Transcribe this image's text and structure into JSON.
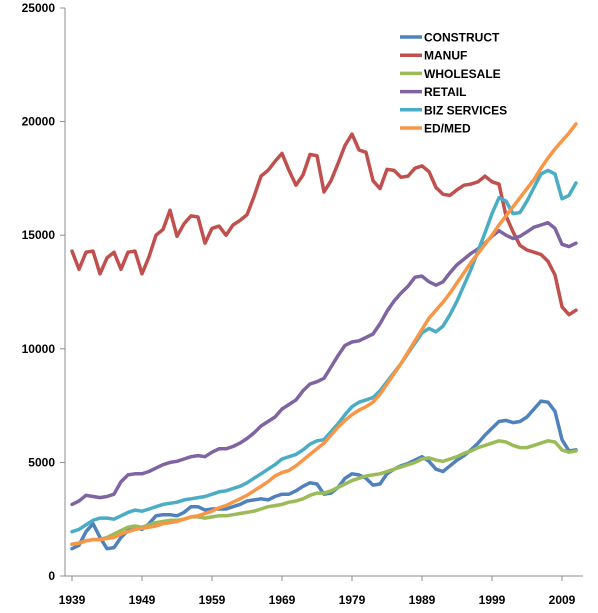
{
  "chart_data": {
    "type": "line",
    "title": "",
    "xlabel": "",
    "ylabel": "",
    "xlim": [
      1938,
      2012
    ],
    "ylim": [
      0,
      25000
    ],
    "x_ticks": [
      1939,
      1949,
      1959,
      1969,
      1979,
      1989,
      1999,
      2009
    ],
    "y_ticks": [
      0,
      5000,
      10000,
      15000,
      20000,
      25000
    ],
    "grid": false,
    "legend": "top-right",
    "series": [
      {
        "name": "CONSTRUCT",
        "color": "#4f81bd",
        "x": [
          1939,
          1940,
          1941,
          1942,
          1943,
          1944,
          1945,
          1946,
          1947,
          1948,
          1949,
          1950,
          1951,
          1952,
          1953,
          1954,
          1955,
          1956,
          1957,
          1958,
          1959,
          1960,
          1961,
          1962,
          1963,
          1964,
          1965,
          1966,
          1967,
          1968,
          1969,
          1970,
          1971,
          1972,
          1973,
          1974,
          1975,
          1976,
          1977,
          1978,
          1979,
          1980,
          1981,
          1982,
          1983,
          1984,
          1985,
          1986,
          1987,
          1988,
          1989,
          1990,
          1991,
          1992,
          1993,
          1994,
          1995,
          1996,
          1997,
          1998,
          1999,
          2000,
          2001,
          2002,
          2003,
          2004,
          2005,
          2006,
          2007,
          2008,
          2009,
          2010,
          2011
        ],
        "values": [
          1200,
          1350,
          1950,
          2300,
          1700,
          1200,
          1250,
          1700,
          2000,
          2150,
          2050,
          2300,
          2650,
          2700,
          2700,
          2650,
          2800,
          3050,
          3050,
          2900,
          2950,
          2950,
          2950,
          3050,
          3150,
          3300,
          3350,
          3400,
          3350,
          3500,
          3600,
          3600,
          3750,
          3950,
          4100,
          4050,
          3600,
          3650,
          3900,
          4300,
          4500,
          4450,
          4300,
          4000,
          4050,
          4500,
          4700,
          4850,
          4950,
          5100,
          5250,
          5050,
          4700,
          4600,
          4850,
          5100,
          5300,
          5550,
          5850,
          6200,
          6500,
          6800,
          6850,
          6750,
          6800,
          7000,
          7350,
          7700,
          7650,
          7250,
          6000,
          5500,
          5550
        ]
      },
      {
        "name": "MANUF",
        "color": "#c0504d",
        "x": [
          1939,
          1940,
          1941,
          1942,
          1943,
          1944,
          1945,
          1946,
          1947,
          1948,
          1949,
          1950,
          1951,
          1952,
          1953,
          1954,
          1955,
          1956,
          1957,
          1958,
          1959,
          1960,
          1961,
          1962,
          1963,
          1964,
          1965,
          1966,
          1967,
          1968,
          1969,
          1970,
          1971,
          1972,
          1973,
          1974,
          1975,
          1976,
          1977,
          1978,
          1979,
          1980,
          1981,
          1982,
          1983,
          1984,
          1985,
          1986,
          1987,
          1988,
          1989,
          1990,
          1991,
          1992,
          1993,
          1994,
          1995,
          1996,
          1997,
          1998,
          1999,
          2000,
          2001,
          2002,
          2003,
          2004,
          2005,
          2006,
          2007,
          2008,
          2009,
          2010,
          2011
        ],
        "values": [
          14300,
          13500,
          14250,
          14300,
          13300,
          14000,
          14250,
          13500,
          14250,
          14300,
          13300,
          14050,
          15000,
          15250,
          16100,
          14950,
          15500,
          15850,
          15800,
          14650,
          15300,
          15400,
          15000,
          15450,
          15650,
          15900,
          16700,
          17600,
          17850,
          18250,
          18600,
          17850,
          17200,
          17650,
          18550,
          18500,
          16900,
          17400,
          18150,
          18950,
          19450,
          18750,
          18650,
          17400,
          17050,
          17900,
          17850,
          17550,
          17600,
          17950,
          18050,
          17800,
          17100,
          16800,
          16750,
          17000,
          17200,
          17250,
          17350,
          17600,
          17350,
          17250,
          15850,
          15150,
          14550,
          14350,
          14250,
          14150,
          13850,
          13250,
          11850,
          11500,
          11700
        ]
      },
      {
        "name": "WHOLESALE",
        "color": "#9bbb59",
        "x": [
          1939,
          1940,
          1941,
          1942,
          1943,
          1944,
          1945,
          1946,
          1947,
          1948,
          1949,
          1950,
          1951,
          1952,
          1953,
          1954,
          1955,
          1956,
          1957,
          1958,
          1959,
          1960,
          1961,
          1962,
          1963,
          1964,
          1965,
          1966,
          1967,
          1968,
          1969,
          1970,
          1971,
          1972,
          1973,
          1974,
          1975,
          1976,
          1977,
          1978,
          1979,
          1980,
          1981,
          1982,
          1983,
          1984,
          1985,
          1986,
          1987,
          1988,
          1989,
          1990,
          1991,
          1992,
          1993,
          1994,
          1995,
          1996,
          1997,
          1998,
          1999,
          2000,
          2001,
          2002,
          2003,
          2004,
          2005,
          2006,
          2007,
          2008,
          2009,
          2010,
          2011
        ],
        "values": [
          1400,
          1450,
          1550,
          1600,
          1600,
          1700,
          1850,
          2000,
          2150,
          2200,
          2150,
          2250,
          2350,
          2400,
          2450,
          2450,
          2500,
          2600,
          2600,
          2550,
          2600,
          2650,
          2650,
          2700,
          2750,
          2800,
          2850,
          2950,
          3050,
          3100,
          3150,
          3250,
          3300,
          3400,
          3550,
          3650,
          3650,
          3750,
          3900,
          4050,
          4200,
          4300,
          4400,
          4450,
          4500,
          4600,
          4700,
          4800,
          4900,
          5000,
          5150,
          5200,
          5100,
          5050,
          5150,
          5250,
          5400,
          5500,
          5650,
          5750,
          5850,
          5950,
          5900,
          5750,
          5650,
          5650,
          5750,
          5850,
          5950,
          5900,
          5550,
          5450,
          5500
        ]
      },
      {
        "name": "RETAIL",
        "color": "#8064a2",
        "x": [
          1939,
          1940,
          1941,
          1942,
          1943,
          1944,
          1945,
          1946,
          1947,
          1948,
          1949,
          1950,
          1951,
          1952,
          1953,
          1954,
          1955,
          1956,
          1957,
          1958,
          1959,
          1960,
          1961,
          1962,
          1963,
          1964,
          1965,
          1966,
          1967,
          1968,
          1969,
          1970,
          1971,
          1972,
          1973,
          1974,
          1975,
          1976,
          1977,
          1978,
          1979,
          1980,
          1981,
          1982,
          1983,
          1984,
          1985,
          1986,
          1987,
          1988,
          1989,
          1990,
          1991,
          1992,
          1993,
          1994,
          1995,
          1996,
          1997,
          1998,
          1999,
          2000,
          2001,
          2002,
          2003,
          2004,
          2005,
          2006,
          2007,
          2008,
          2009,
          2010,
          2011
        ],
        "values": [
          3150,
          3300,
          3550,
          3500,
          3450,
          3500,
          3600,
          4150,
          4450,
          4500,
          4500,
          4600,
          4750,
          4900,
          5000,
          5050,
          5150,
          5250,
          5300,
          5250,
          5450,
          5600,
          5600,
          5700,
          5850,
          6050,
          6300,
          6600,
          6800,
          7000,
          7350,
          7550,
          7750,
          8150,
          8450,
          8550,
          8700,
          9200,
          9700,
          10150,
          10300,
          10350,
          10500,
          10650,
          11100,
          11650,
          12100,
          12450,
          12750,
          13150,
          13200,
          12950,
          12800,
          12950,
          13350,
          13700,
          13950,
          14200,
          14400,
          14650,
          14950,
          15200,
          15000,
          14850,
          14950,
          15150,
          15350,
          15450,
          15550,
          15300,
          14600,
          14500,
          14650
        ]
      },
      {
        "name": "BIZ SERVICES",
        "color": "#4bacc6",
        "x": [
          1939,
          1940,
          1941,
          1942,
          1943,
          1944,
          1945,
          1946,
          1947,
          1948,
          1949,
          1950,
          1951,
          1952,
          1953,
          1954,
          1955,
          1956,
          1957,
          1958,
          1959,
          1960,
          1961,
          1962,
          1963,
          1964,
          1965,
          1966,
          1967,
          1968,
          1969,
          1970,
          1971,
          1972,
          1973,
          1974,
          1975,
          1976,
          1977,
          1978,
          1979,
          1980,
          1981,
          1982,
          1983,
          1984,
          1985,
          1986,
          1987,
          1988,
          1989,
          1990,
          1991,
          1992,
          1993,
          1994,
          1995,
          1996,
          1997,
          1998,
          1999,
          2000,
          2001,
          2002,
          2003,
          2004,
          2005,
          2006,
          2007,
          2008,
          2009,
          2010,
          2011
        ],
        "values": [
          1950,
          2050,
          2250,
          2450,
          2550,
          2550,
          2500,
          2650,
          2800,
          2900,
          2850,
          2950,
          3050,
          3150,
          3200,
          3250,
          3350,
          3400,
          3450,
          3500,
          3600,
          3700,
          3750,
          3850,
          3950,
          4100,
          4300,
          4500,
          4700,
          4900,
          5150,
          5250,
          5350,
          5550,
          5800,
          5950,
          6000,
          6350,
          6700,
          7100,
          7450,
          7650,
          7750,
          7850,
          8150,
          8550,
          8950,
          9350,
          9800,
          10250,
          10700,
          10900,
          10750,
          11000,
          11500,
          12100,
          12800,
          13500,
          14300,
          15100,
          15950,
          16650,
          16500,
          15950,
          16000,
          16500,
          17100,
          17700,
          17850,
          17700,
          16600,
          16750,
          17300
        ]
      },
      {
        "name": "ED/MED",
        "color": "#f79646",
        "x": [
          1939,
          1940,
          1941,
          1942,
          1943,
          1944,
          1945,
          1946,
          1947,
          1948,
          1949,
          1950,
          1951,
          1952,
          1953,
          1954,
          1955,
          1956,
          1957,
          1958,
          1959,
          1960,
          1961,
          1962,
          1963,
          1964,
          1965,
          1966,
          1967,
          1968,
          1969,
          1970,
          1971,
          1972,
          1973,
          1974,
          1975,
          1976,
          1977,
          1978,
          1979,
          1980,
          1981,
          1982,
          1983,
          1984,
          1985,
          1986,
          1987,
          1988,
          1989,
          1990,
          1991,
          1992,
          1993,
          1994,
          1995,
          1996,
          1997,
          1998,
          1999,
          2000,
          2001,
          2002,
          2003,
          2004,
          2005,
          2006,
          2007,
          2008,
          2009,
          2010,
          2011
        ],
        "values": [
          1400,
          1450,
          1550,
          1600,
          1600,
          1650,
          1700,
          1850,
          1950,
          2050,
          2100,
          2150,
          2200,
          2300,
          2350,
          2400,
          2500,
          2600,
          2650,
          2750,
          2850,
          3000,
          3100,
          3250,
          3400,
          3550,
          3750,
          3950,
          4150,
          4400,
          4550,
          4650,
          4850,
          5100,
          5350,
          5600,
          5850,
          6200,
          6550,
          6850,
          7100,
          7300,
          7450,
          7650,
          8000,
          8450,
          8900,
          9350,
          9850,
          10350,
          10850,
          11350,
          11700,
          12050,
          12450,
          12900,
          13350,
          13800,
          14200,
          14600,
          15000,
          15450,
          15850,
          16250,
          16650,
          17050,
          17450,
          17950,
          18400,
          18800,
          19150,
          19500,
          19900
        ]
      }
    ]
  }
}
